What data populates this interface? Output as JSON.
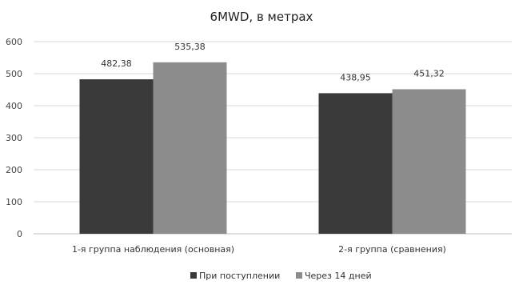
{
  "chart_data": {
    "type": "bar",
    "title": "6MWD, в метрах",
    "categories": [
      "1-я группа наблюдения (основная)",
      "2-я группа (сравнения)"
    ],
    "series": [
      {
        "name": "При поступлении",
        "values": [
          482.38,
          438.95
        ],
        "labels": [
          "482,38",
          "438,95"
        ],
        "color": "#3a3a3a"
      },
      {
        "name": "Через 14 дней",
        "values": [
          535.38,
          451.32
        ],
        "labels": [
          "535,38",
          "451,32"
        ],
        "color": "#8c8c8c"
      }
    ],
    "ylim": [
      0,
      600
    ],
    "yticks": [
      "0",
      "100",
      "200",
      "300",
      "400",
      "500",
      "600"
    ],
    "grid": true,
    "legend": "bottom-center"
  }
}
